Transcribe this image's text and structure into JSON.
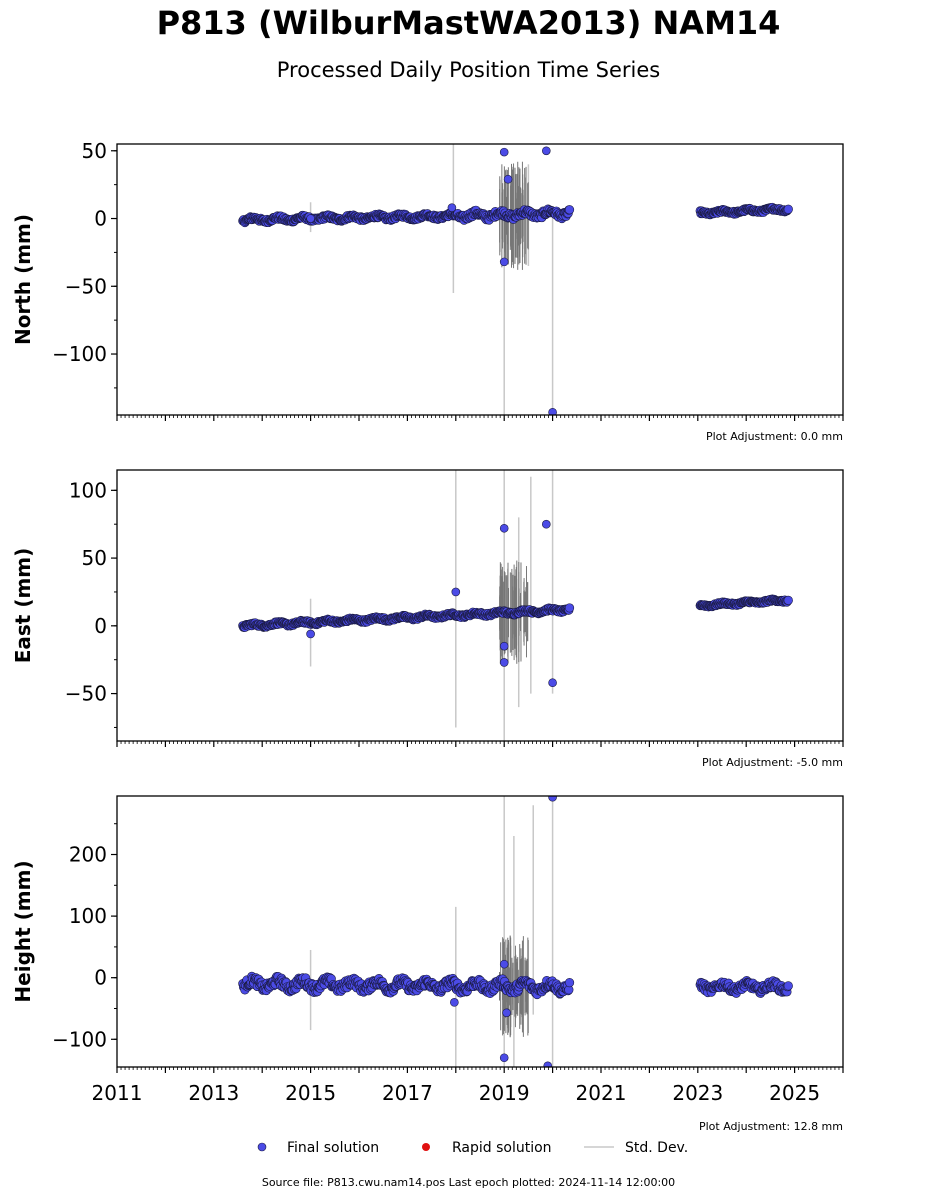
{
  "title": "P813 (WilburMastWA2013) NAM14",
  "subtitle": "Processed Daily Position Time Series",
  "source_label": "Source file: P813.cwu.nam14.pos  Last epoch plotted: 2024-11-14 12:00:00",
  "legend": {
    "final": "Final solution",
    "rapid": "Rapid solution",
    "stddev": "Std. Dev."
  },
  "colors": {
    "final": "#4b4be6",
    "final_edge": "#1a1a40",
    "rapid": "#e01010",
    "stddev": "#c8c8c8"
  },
  "chart_data": [
    {
      "type": "scatter",
      "ylabel": "North (mm)",
      "adjustment": "Plot Adjustment: 0.0 mm",
      "xlim": [
        2011,
        2026
      ],
      "ylim": [
        -145,
        55
      ],
      "yticks": [
        "50",
        "0",
        "−50",
        "−100"
      ],
      "ytick_values": [
        50,
        0,
        -50,
        -100
      ],
      "series": [
        {
          "segments": [
            {
              "x0": 2013.6,
              "x1": 2018.0,
              "y0": -1,
              "y1": 2,
              "wobble": 2
            },
            {
              "x0": 2018.0,
              "x1": 2020.35,
              "y0": 2,
              "y1": 4,
              "wobble": 3
            },
            {
              "x0": 2023.05,
              "x1": 2024.87,
              "y0": 4,
              "y1": 7,
              "wobble": 1.5
            }
          ],
          "outliers": [
            [
              2019.0,
              49
            ],
            [
              2019.08,
              29
            ],
            [
              2019.0,
              -32
            ],
            [
              2019.87,
              50
            ],
            [
              2020.0,
              -143
            ],
            [
              2015.0,
              0
            ],
            [
              2017.92,
              8
            ]
          ]
        }
      ],
      "errorbars": [
        [
          2015.0,
          -10,
          12
        ],
        [
          2017.95,
          -55,
          55
        ],
        [
          2019.0,
          -145,
          10
        ],
        [
          2019.5,
          -35,
          40
        ],
        [
          2020.0,
          -145,
          5
        ]
      ]
    },
    {
      "type": "scatter",
      "ylabel": "East (mm)",
      "adjustment": "Plot Adjustment: -5.0 mm",
      "xlim": [
        2011,
        2026
      ],
      "ylim": [
        -85,
        115
      ],
      "yticks": [
        "100",
        "50",
        "0",
        "−50"
      ],
      "ytick_values": [
        100,
        50,
        0,
        -50
      ],
      "series": [
        {
          "segments": [
            {
              "x0": 2013.6,
              "x1": 2020.35,
              "y0": 0,
              "y1": 12,
              "wobble": 1.5
            },
            {
              "x0": 2023.05,
              "x1": 2024.87,
              "y0": 15,
              "y1": 19,
              "wobble": 1.2
            }
          ],
          "outliers": [
            [
              2019.0,
              72
            ],
            [
              2019.0,
              -15
            ],
            [
              2019.0,
              -27
            ],
            [
              2019.87,
              75
            ],
            [
              2020.0,
              -42
            ],
            [
              2015.0,
              -6
            ],
            [
              2018.0,
              25
            ]
          ]
        }
      ],
      "errorbars": [
        [
          2015.0,
          -30,
          20
        ],
        [
          2018.0,
          -75,
          115
        ],
        [
          2019.0,
          -85,
          115
        ],
        [
          2019.55,
          -50,
          110
        ],
        [
          2020.0,
          -50,
          115
        ],
        [
          2019.3,
          -60,
          80
        ]
      ]
    },
    {
      "type": "scatter",
      "ylabel": "Height (mm)",
      "adjustment": "Plot Adjustment: 12.8 mm",
      "xlim": [
        2011,
        2026
      ],
      "ylim": [
        -145,
        295
      ],
      "yticks": [
        "200",
        "100",
        "0",
        "−100"
      ],
      "ytick_values": [
        200,
        100,
        0,
        -100
      ],
      "xticks": [
        "2011",
        "2013",
        "2015",
        "2017",
        "2019",
        "2021",
        "2023",
        "2025"
      ],
      "xtick_values": [
        2011,
        2013,
        2015,
        2017,
        2019,
        2021,
        2023,
        2025
      ],
      "series": [
        {
          "segments": [
            {
              "x0": 2013.6,
              "x1": 2020.35,
              "y0": -10,
              "y1": -15,
              "wobble": 10
            },
            {
              "x0": 2023.05,
              "x1": 2024.87,
              "y0": -15,
              "y1": -15,
              "wobble": 8
            }
          ],
          "outliers": [
            [
              2019.0,
              22
            ],
            [
              2019.05,
              -57
            ],
            [
              2019.0,
              -130
            ],
            [
              2019.9,
              -143
            ],
            [
              2020.0,
              293
            ],
            [
              2017.97,
              -40
            ]
          ]
        }
      ],
      "errorbars": [
        [
          2015.0,
          -85,
          45
        ],
        [
          2018.0,
          -145,
          115
        ],
        [
          2019.0,
          -145,
          295
        ],
        [
          2019.2,
          -145,
          230
        ],
        [
          2019.6,
          -60,
          280
        ],
        [
          2020.0,
          -145,
          295
        ]
      ]
    }
  ]
}
